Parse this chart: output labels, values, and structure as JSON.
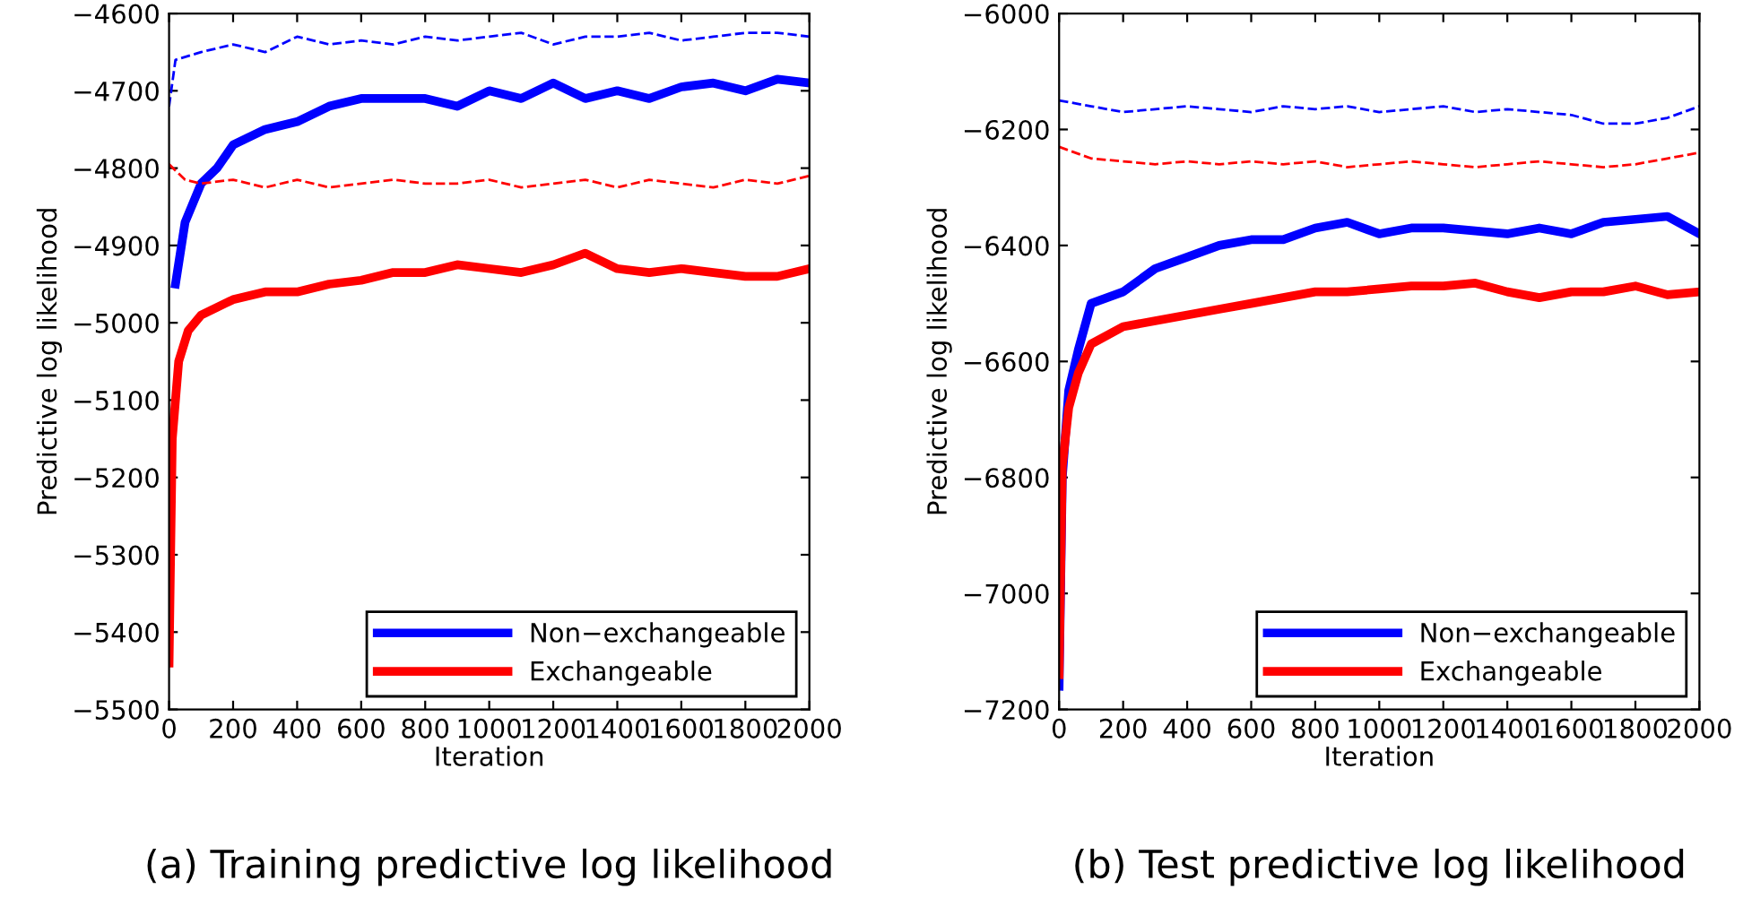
{
  "chart_data": [
    {
      "type": "line",
      "xlabel": "Iteration",
      "ylabel": "Predictive log likelihood",
      "annotations": [
        "(a) Training predictive log likelihood"
      ],
      "xlim": [
        0,
        2000
      ],
      "xticks": [
        0,
        200,
        400,
        600,
        800,
        1000,
        1200,
        1400,
        1600,
        1800,
        2000
      ],
      "ylim": [
        -5500,
        -4600
      ],
      "yticks": [
        -5500,
        -5400,
        -5300,
        -5200,
        -5100,
        -5000,
        -4900,
        -4800,
        -4700,
        -4600
      ],
      "legend": "bottom right",
      "grid": false,
      "marker": "none",
      "series": [
        {
          "name": "Non−exchangeable",
          "color": "#0000ff",
          "line_style": "solid",
          "x": [
            20,
            50,
            100,
            150,
            200,
            300,
            400,
            500,
            600,
            800,
            900,
            1000,
            1100,
            1200,
            1300,
            1400,
            1500,
            1600,
            1700,
            1800,
            1900,
            2000
          ],
          "values": [
            -4950,
            -4870,
            -4820,
            -4800,
            -4770,
            -4750,
            -4740,
            -4720,
            -4710,
            -4710,
            -4720,
            -4700,
            -4710,
            -4690,
            -4710,
            -4700,
            -4710,
            -4695,
            -4690,
            -4700,
            -4685,
            -4690
          ]
        },
        {
          "name": "Exchangeable",
          "color": "#ff0000",
          "line_style": "solid",
          "x": [
            0,
            10,
            30,
            60,
            100,
            200,
            300,
            400,
            500,
            600,
            700,
            800,
            900,
            1000,
            1100,
            1200,
            1300,
            1400,
            1500,
            1600,
            1700,
            1800,
            1900,
            2000
          ],
          "values": [
            -5440,
            -5150,
            -5050,
            -5010,
            -4990,
            -4970,
            -4960,
            -4960,
            -4950,
            -4945,
            -4935,
            -4935,
            -4925,
            -4930,
            -4935,
            -4925,
            -4910,
            -4930,
            -4935,
            -4930,
            -4935,
            -4940,
            -4940,
            -4930
          ]
        },
        {
          "color": "#0000ff",
          "line_style": "dashed",
          "x": [
            0,
            20,
            100,
            200,
            300,
            400,
            500,
            600,
            700,
            800,
            900,
            1000,
            1100,
            1200,
            1300,
            1400,
            1500,
            1600,
            1700,
            1800,
            1900,
            2000
          ],
          "values": [
            -4720,
            -4660,
            -4650,
            -4640,
            -4650,
            -4630,
            -4640,
            -4635,
            -4640,
            -4630,
            -4635,
            -4630,
            -4625,
            -4640,
            -4630,
            -4630,
            -4625,
            -4635,
            -4630,
            -4625,
            -4625,
            -4630
          ]
        },
        {
          "color": "#ff0000",
          "line_style": "dashed",
          "x": [
            0,
            50,
            100,
            200,
            300,
            400,
            500,
            600,
            700,
            800,
            900,
            1000,
            1100,
            1200,
            1300,
            1400,
            1500,
            1600,
            1700,
            1800,
            1900,
            2000
          ],
          "values": [
            -4795,
            -4815,
            -4820,
            -4815,
            -4825,
            -4815,
            -4825,
            -4820,
            -4815,
            -4820,
            -4820,
            -4815,
            -4825,
            -4820,
            -4815,
            -4825,
            -4815,
            -4820,
            -4825,
            -4815,
            -4820,
            -4810
          ]
        }
      ]
    },
    {
      "type": "line",
      "xlabel": "Iteration",
      "ylabel": "Predictive log likelihood",
      "annotations": [
        "(b) Test predictive log likelihood"
      ],
      "xlim": [
        0,
        2000
      ],
      "xticks": [
        0,
        200,
        400,
        600,
        800,
        1000,
        1200,
        1400,
        1600,
        1800,
        2000
      ],
      "ylim": [
        -7200,
        -6000
      ],
      "yticks": [
        -7200,
        -7000,
        -6800,
        -6600,
        -6400,
        -6200,
        -6000
      ],
      "legend": "bottom right",
      "grid": false,
      "marker": "none",
      "series": [
        {
          "name": "Non−exchangeable",
          "color": "#0000ff",
          "line_style": "solid",
          "x": [
            0,
            10,
            30,
            60,
            100,
            200,
            300,
            400,
            500,
            600,
            700,
            800,
            900,
            1000,
            1100,
            1200,
            1300,
            1400,
            1500,
            1600,
            1700,
            1800,
            1900,
            2000
          ],
          "values": [
            -7160,
            -6800,
            -6650,
            -6580,
            -6500,
            -6480,
            -6440,
            -6420,
            -6400,
            -6390,
            -6390,
            -6370,
            -6360,
            -6380,
            -6370,
            -6370,
            -6375,
            -6380,
            -6370,
            -6380,
            -6360,
            -6355,
            -6350,
            -6380
          ]
        },
        {
          "name": "Exchangeable",
          "color": "#ff0000",
          "line_style": "solid",
          "x": [
            0,
            10,
            30,
            60,
            100,
            200,
            300,
            400,
            500,
            600,
            700,
            800,
            900,
            1000,
            1100,
            1200,
            1300,
            1400,
            1500,
            1600,
            1700,
            1800,
            1900,
            2000
          ],
          "values": [
            -7140,
            -6780,
            -6680,
            -6620,
            -6570,
            -6540,
            -6530,
            -6520,
            -6510,
            -6500,
            -6490,
            -6480,
            -6480,
            -6475,
            -6470,
            -6470,
            -6465,
            -6480,
            -6490,
            -6480,
            -6480,
            -6470,
            -6485,
            -6480
          ]
        },
        {
          "color": "#0000ff",
          "line_style": "dashed",
          "x": [
            0,
            100,
            200,
            300,
            400,
            500,
            600,
            700,
            800,
            900,
            1000,
            1100,
            1200,
            1300,
            1400,
            1500,
            1600,
            1700,
            1800,
            1900,
            2000
          ],
          "values": [
            -6150,
            -6160,
            -6170,
            -6165,
            -6160,
            -6165,
            -6170,
            -6160,
            -6165,
            -6160,
            -6170,
            -6165,
            -6160,
            -6170,
            -6165,
            -6170,
            -6175,
            -6190,
            -6190,
            -6180,
            -6160
          ]
        },
        {
          "color": "#ff0000",
          "line_style": "dashed",
          "x": [
            0,
            100,
            200,
            300,
            400,
            500,
            600,
            700,
            800,
            900,
            1000,
            1100,
            1200,
            1300,
            1400,
            1500,
            1600,
            1700,
            1800,
            1900,
            2000
          ],
          "values": [
            -6230,
            -6250,
            -6255,
            -6260,
            -6255,
            -6260,
            -6255,
            -6260,
            -6255,
            -6265,
            -6260,
            -6255,
            -6260,
            -6265,
            -6260,
            -6255,
            -6260,
            -6265,
            -6260,
            -6250,
            -6240
          ]
        }
      ]
    }
  ]
}
